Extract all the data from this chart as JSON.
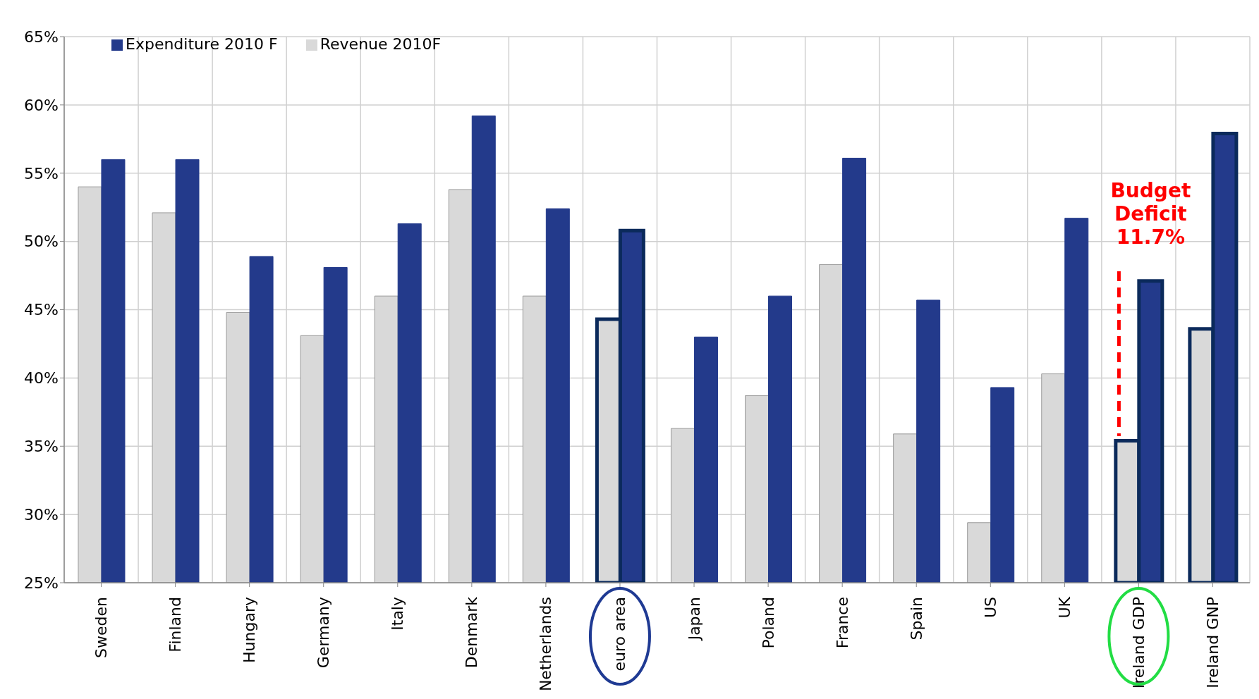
{
  "chart_data": {
    "type": "bar",
    "categories": [
      "Sweden",
      "Finland",
      "Hungary",
      "Germany",
      "Italy",
      "Denmark",
      "Netherlands",
      "euro area",
      "Japan",
      "Poland",
      "France",
      "Spain",
      "US",
      "UK",
      "Ireland GDP",
      "Ireland GNP"
    ],
    "series": [
      {
        "name": "Revenue 2010F",
        "color": "#d9d9d9",
        "values": [
          54.0,
          52.1,
          44.8,
          43.1,
          46.0,
          53.8,
          46.0,
          44.3,
          36.3,
          38.7,
          48.3,
          35.9,
          29.4,
          40.3,
          35.4,
          43.6
        ]
      },
      {
        "name": "Expenditure 2010 F",
        "color": "#233a8b",
        "values": [
          56.0,
          56.0,
          48.9,
          48.1,
          51.3,
          59.2,
          52.4,
          50.8,
          43.0,
          46.0,
          56.1,
          45.7,
          39.3,
          51.7,
          47.1,
          57.9
        ]
      }
    ],
    "ylim": [
      25,
      65
    ],
    "yticks": [
      {
        "value": 25,
        "label": "25%"
      },
      {
        "value": 30,
        "label": "30%"
      },
      {
        "value": 35,
        "label": "35%"
      },
      {
        "value": 40,
        "label": "40%"
      },
      {
        "value": 45,
        "label": "45%"
      },
      {
        "value": 50,
        "label": "50%"
      },
      {
        "value": 55,
        "label": "55%"
      },
      {
        "value": 60,
        "label": "60%"
      },
      {
        "value": 65,
        "label": "65%"
      }
    ],
    "grid": true,
    "legend": "top left",
    "annotations": [
      {
        "text": "Budget Deficit 11.7%",
        "x": "Ireland GDP",
        "y": 47.1
      }
    ]
  }
}
